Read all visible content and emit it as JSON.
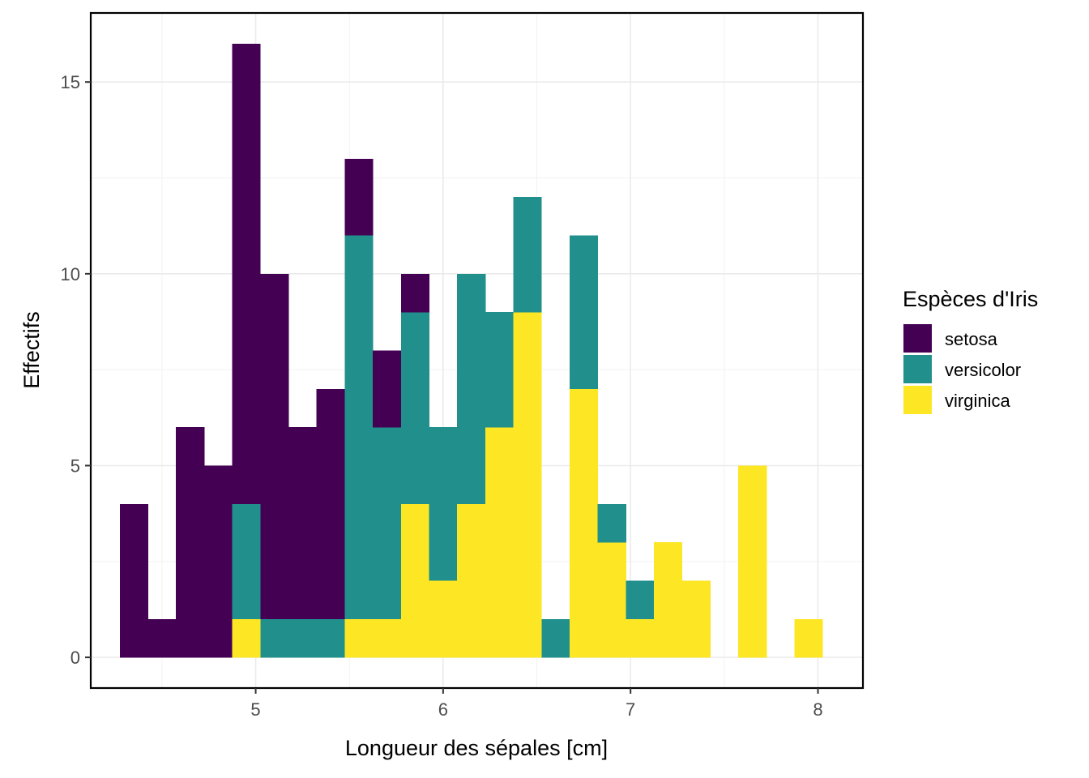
{
  "chart_data": {
    "type": "bar",
    "stacked": true,
    "xlabel": "Longueur des sépales  [cm]",
    "ylabel": "Effectifs",
    "legend_title": "Espèces d'Iris",
    "legend_position": "right",
    "grid": true,
    "xlim": [
      4.12,
      8.24
    ],
    "ylim": [
      -0.8,
      16.8
    ],
    "x_ticks": [
      "5",
      "6",
      "7",
      "8"
    ],
    "y_ticks": [
      "0",
      "5",
      "10",
      "15"
    ],
    "bin_width": 0.15,
    "bin_centers": [
      4.35,
      4.5,
      4.65,
      4.8,
      4.95,
      5.1,
      5.25,
      5.4,
      5.55,
      5.7,
      5.85,
      6.0,
      6.15,
      6.3,
      6.45,
      6.6,
      6.75,
      6.9,
      7.05,
      7.2,
      7.35,
      7.5,
      7.65,
      7.8,
      7.95
    ],
    "series": [
      {
        "name": "setosa",
        "color": "#440154",
        "values": [
          4,
          1,
          6,
          5,
          12,
          9,
          5,
          6,
          2,
          2,
          1,
          0,
          0,
          0,
          0,
          0,
          0,
          0,
          0,
          0,
          0,
          0,
          0,
          0,
          0
        ]
      },
      {
        "name": "versicolor",
        "color": "#21908C",
        "values": [
          0,
          0,
          0,
          0,
          3,
          1,
          1,
          1,
          10,
          5,
          5,
          4,
          6,
          3,
          3,
          1,
          4,
          1,
          1,
          0,
          0,
          0,
          0,
          0,
          0
        ]
      },
      {
        "name": "virginica",
        "color": "#FDE725",
        "values": [
          0,
          0,
          0,
          0,
          1,
          0,
          0,
          0,
          1,
          1,
          4,
          2,
          4,
          6,
          9,
          0,
          7,
          3,
          1,
          3,
          2,
          0,
          5,
          0,
          1
        ]
      }
    ]
  }
}
